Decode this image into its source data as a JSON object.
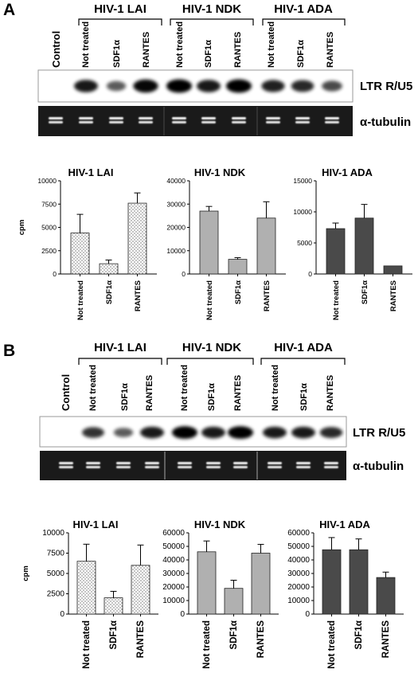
{
  "panels": [
    {
      "letter": "A",
      "groups": [
        "HIV-1 LAI",
        "HIV-1 NDK",
        "HIV-1 ADA"
      ],
      "lanes": [
        "Control",
        "Not treated",
        "SDF1α",
        "RANTES",
        "Not treated",
        "SDF1α",
        "RANTES",
        "Not treated",
        "SDF1α",
        "RANTES"
      ],
      "blot_label": "LTR R/U5",
      "gel_label": "α-tubulin",
      "band_intensity": [
        0,
        0.85,
        0.45,
        0.95,
        1.0,
        0.85,
        1.0,
        0.8,
        0.75,
        0.55
      ],
      "charts": [
        {
          "type": "bar",
          "title": "HIV-1 LAI",
          "ylabel": "cpm",
          "categories": [
            "Not treated",
            "SDF1α",
            "RANTES"
          ],
          "values": [
            4400,
            1100,
            7600
          ],
          "errors": [
            2000,
            400,
            1100
          ],
          "ylim": [
            0,
            10000
          ],
          "yticks": [
            "0",
            "2500",
            "5000",
            "7500",
            "10000"
          ],
          "fill": "dotted"
        },
        {
          "type": "bar",
          "title": "HIV-1 NDK",
          "ylabel": "",
          "categories": [
            "Not treated",
            "SDF1α",
            "RANTES"
          ],
          "values": [
            27000,
            6300,
            24000
          ],
          "errors": [
            2000,
            700,
            7000
          ],
          "ylim": [
            0,
            40000
          ],
          "yticks": [
            "0",
            "10000",
            "20000",
            "30000",
            "40000"
          ],
          "fill": "#b0b0b0"
        },
        {
          "type": "bar",
          "title": "HIV-1 ADA",
          "ylabel": "",
          "categories": [
            "Not treated",
            "SDF1α",
            "RANTES"
          ],
          "values": [
            7300,
            9000,
            1300
          ],
          "errors": [
            900,
            2200,
            0
          ],
          "ylim": [
            0,
            15000
          ],
          "yticks": [
            "0",
            "5000",
            "10000",
            "15000"
          ],
          "fill": "#4a4a4a"
        }
      ]
    },
    {
      "letter": "B",
      "groups": [
        "HIV-1 LAI",
        "HIV-1 NDK",
        "HIV-1 ADA"
      ],
      "lanes": [
        "Control",
        "Not treated",
        "SDF1α",
        "RANTES",
        "Not treated",
        "SDF1α",
        "RANTES",
        "Not treated",
        "SDF1α",
        "RANTES"
      ],
      "blot_label": "LTR R/U5",
      "gel_label": "α-tubulin",
      "band_intensity": [
        0,
        0.7,
        0.45,
        0.85,
        1.0,
        0.85,
        1.0,
        0.85,
        0.85,
        0.75
      ],
      "charts": [
        {
          "type": "bar",
          "title": "HIV-1 LAI",
          "ylabel": "cpm",
          "categories": [
            "Not treated",
            "SDF1α",
            "RANTES"
          ],
          "values": [
            6500,
            2000,
            6000
          ],
          "errors": [
            2100,
            800,
            2500
          ],
          "ylim": [
            0,
            10000
          ],
          "yticks": [
            "0",
            "2500",
            "5000",
            "7500",
            "10000"
          ],
          "fill": "dotted"
        },
        {
          "type": "bar",
          "title": "HIV-1 NDK",
          "ylabel": "",
          "categories": [
            "Not treated",
            "SDF1α",
            "RANTES"
          ],
          "values": [
            46000,
            19000,
            45000
          ],
          "errors": [
            8000,
            6000,
            6500
          ],
          "ylim": [
            0,
            60000
          ],
          "yticks": [
            "0",
            "10000",
            "20000",
            "30000",
            "40000",
            "50000",
            "60000"
          ],
          "fill": "#b0b0b0"
        },
        {
          "type": "bar",
          "title": "HIV-1 ADA",
          "ylabel": "",
          "categories": [
            "Not treated",
            "SDF1α",
            "RANTES"
          ],
          "values": [
            47500,
            47500,
            27000
          ],
          "errors": [
            9000,
            8000,
            4000
          ],
          "ylim": [
            0,
            60000
          ],
          "yticks": [
            "0",
            "10000",
            "20000",
            "30000",
            "40000",
            "50000",
            "60000"
          ],
          "fill": "#4a4a4a"
        }
      ]
    }
  ]
}
